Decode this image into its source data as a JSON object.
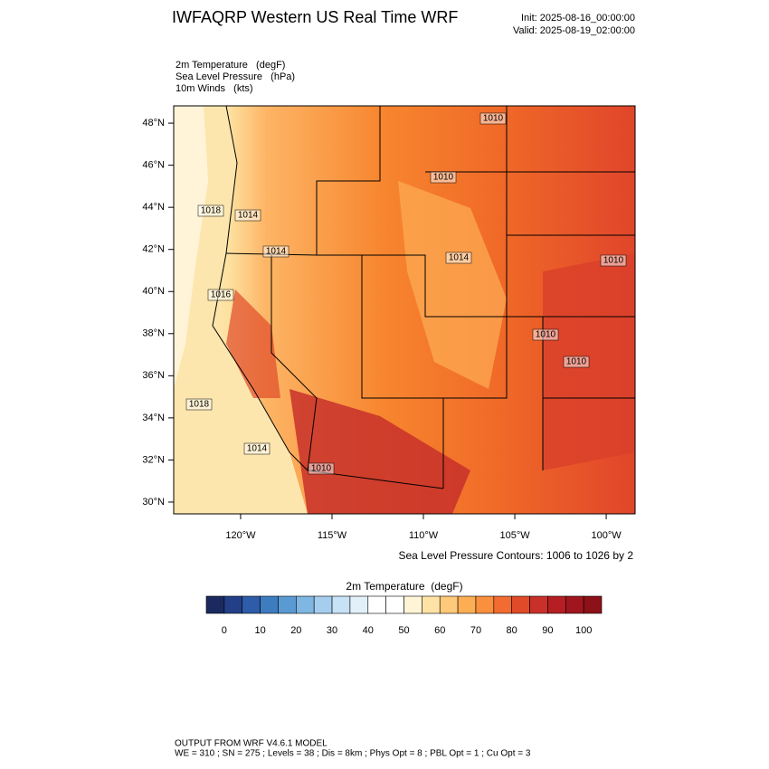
{
  "title": "IWFAQRP Western US Real Time WRF",
  "init": "Init: 2025-08-16_00:00:00",
  "valid": "Valid: 2025-08-19_02:00:00",
  "fields": [
    "2m Temperature   (degF)",
    "Sea Level Pressure   (hPa)",
    "10m Winds   (kts)"
  ],
  "map": {
    "xlim": [
      -123.66,
      -98.42
    ],
    "ylim": [
      29.44,
      48.82
    ],
    "xticks": [
      {
        "value": -120,
        "label": "120°W"
      },
      {
        "value": -115,
        "label": "115°W"
      },
      {
        "value": -110,
        "label": "110°W"
      },
      {
        "value": -105,
        "label": "105°W"
      },
      {
        "value": -100,
        "label": "100°W"
      }
    ],
    "yticks": [
      {
        "value": 30,
        "label": "30°N"
      },
      {
        "value": 32,
        "label": "32°N"
      },
      {
        "value": 34,
        "label": "34°N"
      },
      {
        "value": 36,
        "label": "36°N"
      },
      {
        "value": 38,
        "label": "38°N"
      },
      {
        "value": 40,
        "label": "40°N"
      },
      {
        "value": 42,
        "label": "42°N"
      },
      {
        "value": 44,
        "label": "44°N"
      },
      {
        "value": 46,
        "label": "46°N"
      },
      {
        "value": 48,
        "label": "48°N"
      }
    ],
    "contour_labels": [
      "1010",
      "1010",
      "1018",
      "1014",
      "1014",
      "1014",
      "1010",
      "1016",
      "1010",
      "1010",
      "1018",
      "1014",
      "1010"
    ]
  },
  "contour_info": "Sea Level Pressure Contours: 1006 to 1026 by 2",
  "colorbar": {
    "title": "2m Temperature  (degF)",
    "lim": [
      -5,
      105
    ],
    "ticks": [
      0,
      10,
      20,
      30,
      40,
      50,
      60,
      70,
      80,
      90,
      100
    ],
    "colors": [
      "#1b2a5e",
      "#233f88",
      "#2e5ca8",
      "#3e7cc0",
      "#5a9ad2",
      "#7fb6e2",
      "#a5cdee",
      "#c7e1f5",
      "#e2f0fa",
      "#ffffff",
      "#ffffff",
      "#fff5d6",
      "#ffe3a6",
      "#fec978",
      "#fdae55",
      "#fa8f3d",
      "#f26b30",
      "#e04a28",
      "#c9302a",
      "#b51f24",
      "#a0161e",
      "#8c1119"
    ]
  },
  "footer": [
    "OUTPUT FROM WRF V4.6.1 MODEL",
    "WE = 310 ; SN = 275 ; Levels = 38 ; Dis = 8km ; Phys Opt = 8 ; PBL Opt = 1 ; Cu Opt = 3"
  ]
}
